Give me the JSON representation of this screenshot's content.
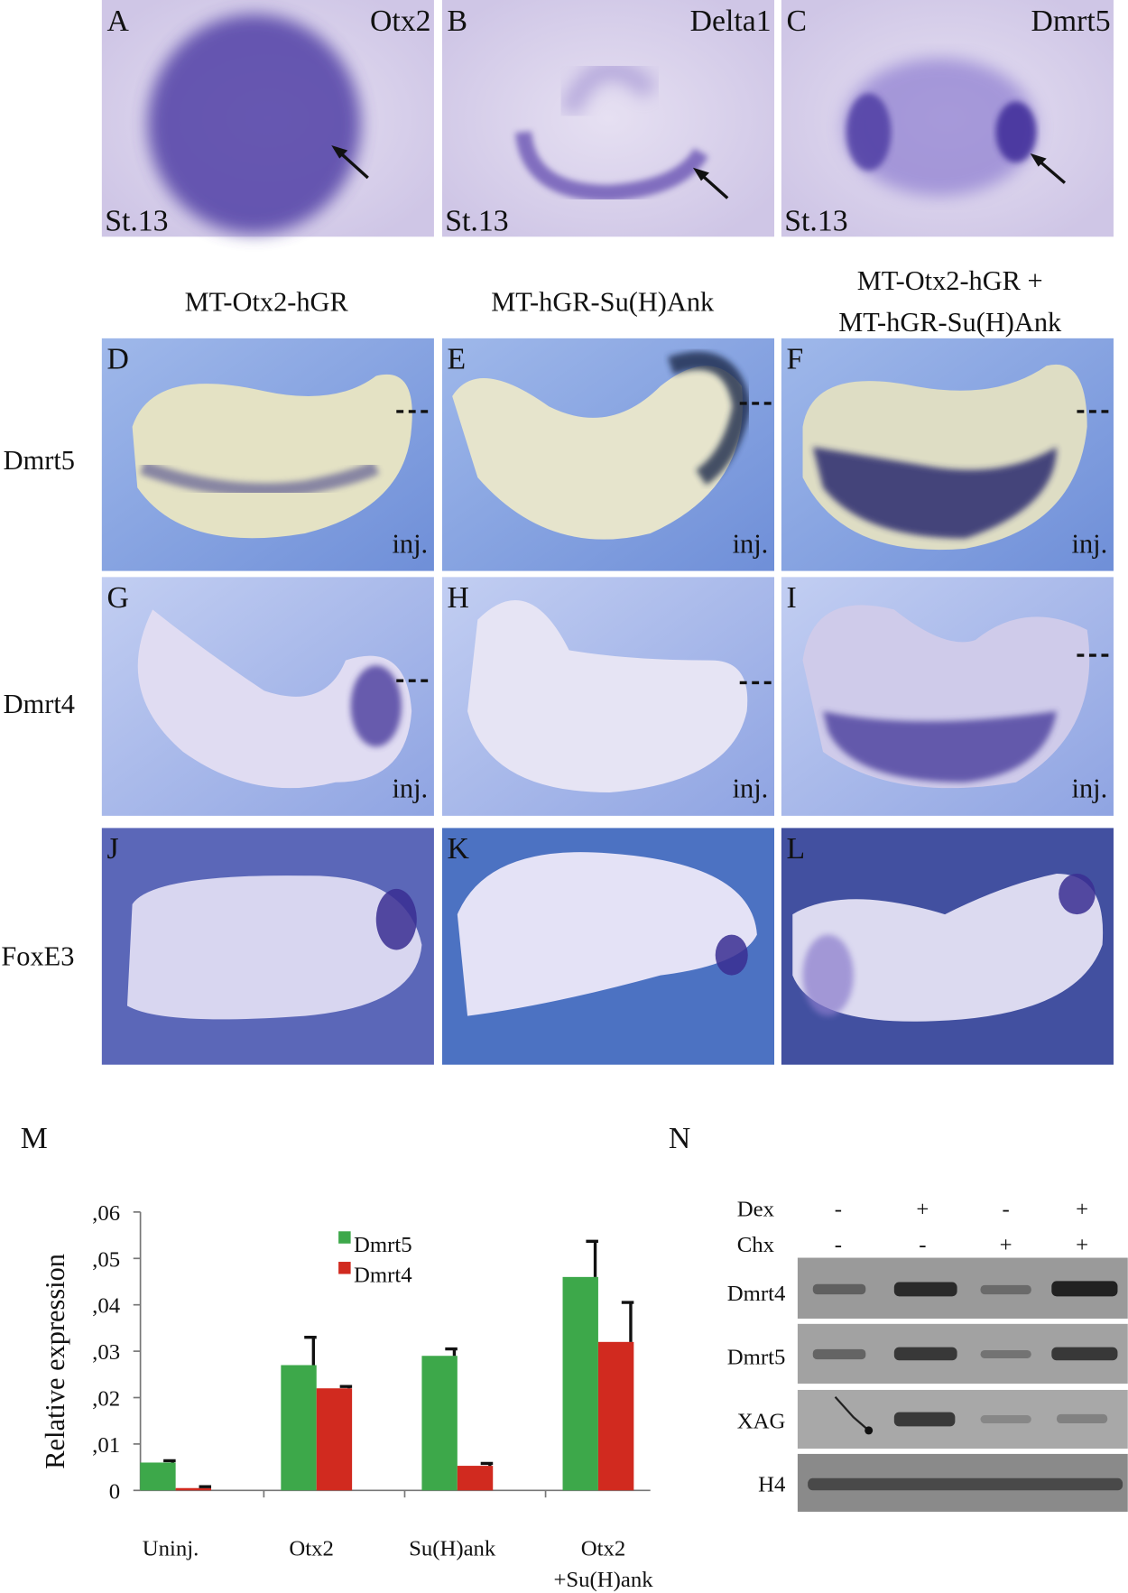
{
  "panels": [
    {
      "letter": "A",
      "gene": "Otx2",
      "stage": "St.13"
    },
    {
      "letter": "B",
      "gene": "Delta1",
      "stage": "St.13"
    },
    {
      "letter": "C",
      "gene": "Dmrt5",
      "stage": "St.13"
    },
    {
      "letter": "D",
      "note": "inj."
    },
    {
      "letter": "E",
      "note": "inj."
    },
    {
      "letter": "F",
      "note": "inj."
    },
    {
      "letter": "G",
      "note": "inj."
    },
    {
      "letter": "H",
      "note": "inj."
    },
    {
      "letter": "I",
      "note": "inj."
    },
    {
      "letter": "J"
    },
    {
      "letter": "K"
    },
    {
      "letter": "L"
    }
  ],
  "column_headers": [
    "MT-Otx2-hGR",
    "MT-hGR-Su(H)Ank",
    [
      "MT-Otx2-hGR +",
      "MT-hGR-Su(H)Ank"
    ]
  ],
  "row_labels": [
    "Dmrt5",
    "Dmrt4",
    "FoxE3"
  ],
  "chart_data": {
    "type": "bar",
    "panel_label": "M",
    "ylabel": "Relative expression",
    "categories": [
      "Uninj.",
      "Otx2",
      "Su(H)ank",
      [
        "Otx2",
        "+Su(H)ank"
      ]
    ],
    "series": [
      {
        "name": "Dmrt5",
        "color": "#3da84a",
        "values": [
          0.006,
          0.027,
          0.029,
          0.046
        ],
        "errors": [
          0.0004,
          0.006,
          0.0015,
          0.0077
        ]
      },
      {
        "name": "Dmrt4",
        "color": "#d12a1f",
        "values": [
          0.0005,
          0.022,
          0.0053,
          0.032
        ],
        "errors": [
          0.0003,
          0.0004,
          0.0005,
          0.0085
        ]
      }
    ],
    "ylim": [
      0,
      0.06
    ],
    "yticks": [
      0,
      {
        "value": 0.01,
        "label": ",01"
      },
      {
        "value": 0.02,
        "label": ",02"
      },
      {
        "value": 0.03,
        "label": ",03"
      },
      {
        "value": 0.04,
        "label": ",04"
      },
      {
        "value": 0.05,
        "label": ",05"
      },
      {
        "value": 0.06,
        "label": ",06"
      }
    ]
  },
  "gel": {
    "panel_label": "N",
    "conditions": [
      {
        "name": "Dex",
        "signs": [
          "-",
          "+",
          "-",
          "+"
        ]
      },
      {
        "name": "Chx",
        "signs": [
          "-",
          "-",
          "+",
          "+"
        ]
      }
    ],
    "bands": [
      "Dmrt4",
      "Dmrt5",
      "XAG",
      "H4"
    ]
  }
}
